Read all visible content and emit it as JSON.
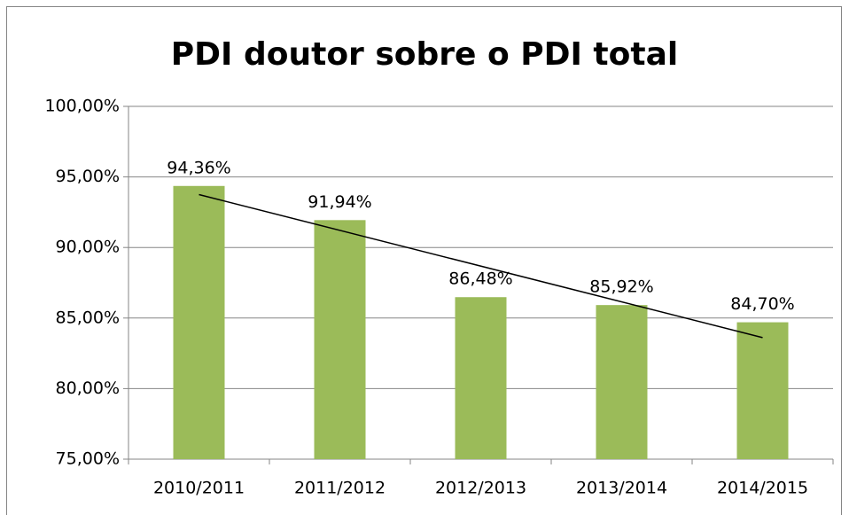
{
  "chart_data": {
    "type": "bar",
    "title": "PDI doutor sobre o PDI total",
    "categories": [
      "2010/2011",
      "2011/2012",
      "2012/2013",
      "2013/2014",
      "2014/2015"
    ],
    "values": [
      94.36,
      91.94,
      86.48,
      85.92,
      84.7
    ],
    "value_labels": [
      "94,36%",
      "91,94%",
      "86,48%",
      "85,92%",
      "84,70%"
    ],
    "color": "#9bbb59",
    "ylim": [
      75,
      100
    ],
    "yticks": [
      {
        "value": 75,
        "label": "75,00%"
      },
      {
        "value": 80,
        "label": "80,00%"
      },
      {
        "value": 85,
        "label": "85,00%"
      },
      {
        "value": 90,
        "label": "90,00%"
      },
      {
        "value": 95,
        "label": "95,00%"
      },
      {
        "value": 100,
        "label": "100,00%"
      }
    ],
    "grid": true,
    "trendline": "linear"
  }
}
